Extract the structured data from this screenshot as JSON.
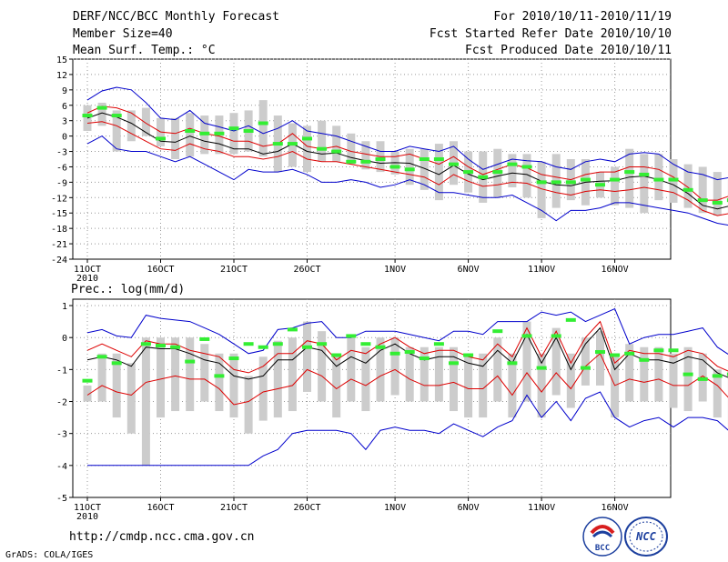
{
  "header": {
    "title": "DERF/NCC/BCC Monthly Forecast",
    "member_size": "Member Size=40",
    "variable": "Mean Surf. Temp.: °C",
    "period": "For 2010/10/11-2010/11/19",
    "fcst_started": "Fcst Started Refer Date 2010/10/10",
    "fcst_produced": "Fcst Produced Date 2010/10/11"
  },
  "footer": {
    "url": "http://cmdp.ncc.cma.gov.cn",
    "credit": "GrADS: COLA/IGES",
    "logo_left_text": "BCC",
    "logo_right_text": "NCC"
  },
  "colors": {
    "envelope": "#0000cc",
    "spread": "#dd0000",
    "mean": "#000000",
    "observed": "#33ee33",
    "boxes": "#cccccc",
    "grid": "#999999"
  },
  "chart_data": [
    {
      "type": "line",
      "title": "Mean Surf. Temp.: °C",
      "x_labels": [
        "11OCT",
        "16OCT",
        "21OCT",
        "26OCT",
        "1NOV",
        "6NOV",
        "11NOV",
        "16NOV"
      ],
      "x_label_days": [
        0,
        5,
        10,
        15,
        21,
        26,
        31,
        36
      ],
      "x_year": "2010",
      "ylim": [
        -24,
        15
      ],
      "yticks": [
        15,
        12,
        9,
        6,
        3,
        0,
        -3,
        -6,
        -9,
        -12,
        -15,
        -18,
        -21,
        -24
      ],
      "series": [
        {
          "name": "max",
          "values": [
            7,
            8.8,
            9.5,
            9,
            6.5,
            3.5,
            3.2,
            5,
            2.5,
            1.8,
            1,
            2,
            0.5,
            1.5,
            3,
            1,
            0.5,
            0,
            -1,
            -2,
            -3,
            -3,
            -2,
            -2.5,
            -3,
            -2,
            -4.5,
            -6.5,
            -5.5,
            -4.5,
            -4.8,
            -5,
            -6,
            -6.5,
            -5,
            -4.5,
            -5,
            -3.5,
            -3.2,
            -3.5,
            -5.5,
            -7,
            -7.5,
            -8.5,
            -8,
            -9
          ]
        },
        {
          "name": "upper",
          "values": [
            4.5,
            5.8,
            5.5,
            4.5,
            2.5,
            0.8,
            0.5,
            1.5,
            0.5,
            0,
            -1,
            -1,
            -2,
            -1.5,
            0.5,
            -2,
            -2.5,
            -2,
            -3,
            -3.5,
            -4,
            -4,
            -3.5,
            -4.5,
            -5.5,
            -4,
            -6,
            -7.5,
            -6.5,
            -5.5,
            -6.2,
            -7.5,
            -8,
            -8.5,
            -7.5,
            -7,
            -7,
            -6,
            -6,
            -6.5,
            -8,
            -10,
            -12.5,
            -12.5,
            -11.5,
            -12.5
          ]
        },
        {
          "name": "mean",
          "values": [
            3.5,
            4.5,
            3.7,
            2.5,
            0.7,
            -1,
            -1.2,
            0,
            -1,
            -1.5,
            -2.5,
            -2.5,
            -3.5,
            -3,
            -1.5,
            -3,
            -3.5,
            -3.3,
            -4.2,
            -4.8,
            -5.3,
            -5.2,
            -5.3,
            -6.3,
            -7.5,
            -5.7,
            -7.4,
            -8.5,
            -7.8,
            -7.2,
            -7.5,
            -8.8,
            -9.5,
            -9.7,
            -9,
            -8.8,
            -8.7,
            -8,
            -7.8,
            -8.5,
            -9.5,
            -11.2,
            -13.5,
            -14.2,
            -13.5,
            -14.7
          ]
        },
        {
          "name": "lower",
          "values": [
            2.5,
            2.8,
            2,
            0.5,
            -1,
            -2.5,
            -2.8,
            -1.5,
            -2.5,
            -3,
            -4,
            -4,
            -4.5,
            -4,
            -3,
            -4.5,
            -5,
            -5,
            -5.5,
            -6,
            -6.5,
            -7,
            -7.5,
            -8,
            -9.5,
            -7.5,
            -8.8,
            -9.8,
            -9.5,
            -9,
            -9.2,
            -10.3,
            -11,
            -11.5,
            -10.8,
            -10.5,
            -10.8,
            -10.5,
            -10,
            -10.5,
            -11,
            -12.5,
            -14.5,
            -15.5,
            -15,
            -16.5
          ]
        },
        {
          "name": "min",
          "values": [
            -1.5,
            0,
            -2.5,
            -3,
            -3,
            -4,
            -5,
            -4,
            -5.5,
            -7,
            -8.5,
            -6.5,
            -7,
            -7,
            -6.5,
            -7.5,
            -9,
            -9,
            -8.5,
            -9,
            -10,
            -9.5,
            -8.5,
            -9.5,
            -11,
            -11,
            -11.5,
            -12,
            -12,
            -11.5,
            -13,
            -14.5,
            -16.5,
            -14.5,
            -14.5,
            -14,
            -13,
            -13,
            -13.5,
            -14,
            -14.5,
            -15,
            -16,
            -17,
            -17.5,
            -20
          ]
        },
        {
          "name": "box_high",
          "values": [
            6,
            6.5,
            5,
            5,
            5.5,
            3.5,
            3.5,
            4.5,
            4,
            4,
            4.5,
            5,
            7,
            4,
            2.5,
            2,
            3,
            2,
            0.5,
            -1,
            -1,
            -3,
            -2.5,
            -2.5,
            -1.5,
            -1,
            -3,
            -3,
            -2.5,
            -3.5,
            -3.5,
            -5,
            -3.5,
            -4.5,
            -4.5,
            -7,
            -6,
            -2.5,
            -3.5,
            -3.5,
            -4.5,
            -5.5,
            -6,
            -7,
            -8.5,
            -10.5
          ]
        },
        {
          "name": "box_low",
          "values": [
            1,
            2,
            -3,
            -1,
            0,
            -2,
            -4.5,
            -4,
            -3.5,
            -3.5,
            -3.5,
            -3,
            -4,
            -7,
            -6,
            -7,
            -5,
            -5,
            -5.5,
            -6.5,
            -7,
            -7.5,
            -9.5,
            -10.5,
            -12.5,
            -9.5,
            -11,
            -13,
            -12,
            -10,
            -12,
            -16,
            -14,
            -12.5,
            -13.5,
            -12,
            -13.5,
            -14,
            -15,
            -12.5,
            -13,
            -14,
            -15,
            -15.5,
            -15,
            -17
          ]
        },
        {
          "name": "observed",
          "values": [
            4,
            5.5,
            4,
            null,
            null,
            -0.5,
            null,
            1,
            0.5,
            0.5,
            1.5,
            1,
            2.5,
            -1.5,
            -1.5,
            -0.5,
            -2.5,
            -3,
            -5,
            -5,
            -4.5,
            -6,
            -6.5,
            -4.5,
            -4.5,
            -5.5,
            -7,
            -8,
            -7,
            -5.5,
            -6,
            -9,
            -9,
            -9,
            -8.5,
            -9.5,
            -8.5,
            -7,
            -7.5,
            -8.5,
            -8.5,
            -10.5,
            -12.5,
            -13,
            -12.5,
            -14
          ]
        }
      ]
    },
    {
      "type": "line",
      "title": "Prec.: log(mm/d)",
      "x_labels": [
        "11OCT",
        "16OCT",
        "21OCT",
        "26OCT",
        "1NOV",
        "6NOV",
        "11NOV",
        "16NOV"
      ],
      "x_label_days": [
        0,
        5,
        10,
        15,
        21,
        26,
        31,
        36
      ],
      "x_year": "2010",
      "ylim": [
        -5,
        1.2
      ],
      "yticks": [
        1,
        0,
        -1,
        -2,
        -3,
        -4,
        -5
      ],
      "series": [
        {
          "name": "max",
          "values": [
            0.15,
            0.25,
            0.05,
            0,
            0.7,
            0.6,
            0.55,
            0.5,
            0.3,
            0.1,
            -0.2,
            -0.5,
            -0.4,
            0.25,
            0.3,
            0.45,
            0.5,
            0,
            0,
            0.2,
            0.2,
            0.2,
            0.1,
            0,
            -0.1,
            0.2,
            0.2,
            0.1,
            0.5,
            0.5,
            0.5,
            0.8,
            0.7,
            0.8,
            0.5,
            0.7,
            0.9,
            -0.2,
            0,
            0.1,
            0.1,
            0.2,
            0.3,
            -0.3,
            -0.6,
            -0.5,
            -0.3
          ]
        },
        {
          "name": "upper",
          "values": [
            -0.4,
            -0.2,
            -0.4,
            -0.6,
            -0.1,
            -0.2,
            -0.2,
            -0.4,
            -0.5,
            -0.6,
            -1,
            -1.1,
            -0.9,
            -0.5,
            -0.5,
            -0.1,
            -0.2,
            -0.7,
            -0.4,
            -0.5,
            -0.2,
            0,
            -0.3,
            -0.5,
            -0.4,
            -0.4,
            -0.6,
            -0.7,
            -0.2,
            -0.6,
            0.3,
            -0.6,
            0.2,
            -0.8,
            0,
            0.5,
            -0.8,
            -0.4,
            -0.5,
            -0.5,
            -0.6,
            -0.4,
            -0.5,
            -0.9,
            -1.1,
            -1.2,
            -1
          ]
        },
        {
          "name": "mean",
          "values": [
            -0.7,
            -0.6,
            -0.7,
            -0.9,
            -0.3,
            -0.35,
            -0.35,
            -0.5,
            -0.7,
            -0.8,
            -1.2,
            -1.3,
            -1.2,
            -0.7,
            -0.7,
            -0.3,
            -0.4,
            -0.9,
            -0.6,
            -0.8,
            -0.4,
            -0.2,
            -0.5,
            -0.7,
            -0.6,
            -0.6,
            -0.8,
            -0.9,
            -0.4,
            -0.8,
            0.1,
            -0.8,
            0,
            -1,
            -0.2,
            0.3,
            -1,
            -0.5,
            -0.7,
            -0.7,
            -0.8,
            -0.6,
            -0.7,
            -1.1,
            -1.3,
            -1.3,
            -1.1
          ]
        },
        {
          "name": "lower",
          "values": [
            -1.8,
            -1.5,
            -1.7,
            -1.8,
            -1.4,
            -1.3,
            -1.2,
            -1.3,
            -1.3,
            -1.6,
            -2.1,
            -2,
            -1.7,
            -1.6,
            -1.5,
            -1,
            -1.2,
            -1.6,
            -1.3,
            -1.5,
            -1.2,
            -1,
            -1.3,
            -1.5,
            -1.5,
            -1.4,
            -1.6,
            -1.6,
            -1.2,
            -1.8,
            -1.1,
            -1.7,
            -1.1,
            -1.6,
            -0.9,
            -0.5,
            -1.5,
            -1.3,
            -1.4,
            -1.3,
            -1.5,
            -1.5,
            -1.2,
            -1.5,
            -2,
            -1.8,
            -1.6
          ]
        },
        {
          "name": "min",
          "values": [
            -4,
            -4,
            -4,
            -4,
            -4,
            -4,
            -4,
            -4,
            -4,
            -4,
            -4,
            -4,
            -3.7,
            -3.5,
            -3,
            -2.9,
            -2.9,
            -2.9,
            -3,
            -3.5,
            -2.9,
            -2.8,
            -2.9,
            -2.9,
            -3,
            -2.7,
            -2.9,
            -3.1,
            -2.8,
            -2.6,
            -1.8,
            -2.5,
            -2,
            -2.6,
            -1.9,
            -1.7,
            -2.5,
            -2.8,
            -2.6,
            -2.5,
            -2.8,
            -2.5,
            -2.5,
            -2.6,
            -3,
            -3.1,
            -2.9
          ]
        },
        {
          "name": "box_high",
          "values": [
            -1.5,
            -0.5,
            -0.5,
            -0.8,
            0,
            0,
            0,
            0,
            -0.2,
            -0.5,
            -0.5,
            -1.2,
            -0.6,
            -0.1,
            0,
            0.5,
            0.2,
            -0.5,
            0,
            -0.3,
            0,
            0,
            -0.3,
            -0.3,
            -0.3,
            -0.3,
            -0.5,
            -0.5,
            0,
            -0.5,
            0.5,
            -0.5,
            0.3,
            -0.5,
            0,
            0.2,
            -0.5,
            -0.2,
            -0.3,
            -0.3,
            -0.5,
            -0.3,
            -0.5,
            -1,
            -1,
            -1.2,
            -1
          ]
        },
        {
          "name": "box_low",
          "values": [
            -2,
            -2,
            -2.5,
            -3,
            -4,
            -2.5,
            -2.3,
            -2.3,
            -2,
            -2.3,
            -2.5,
            -3,
            -2.6,
            -2.5,
            -2.3,
            -1.7,
            -2,
            -2.5,
            -2,
            -2.3,
            -2,
            -1.8,
            -2,
            -2,
            -2,
            -2.3,
            -2.5,
            -2.5,
            -2,
            -2.5,
            -2,
            -2.5,
            -1.8,
            -2.2,
            -1.5,
            -1.5,
            -2.5,
            -2,
            -2,
            -2,
            -2.2,
            -2.3,
            -2,
            -2.5,
            -2.8,
            -2.5,
            -2.4
          ]
        },
        {
          "name": "observed",
          "values": [
            -1.35,
            -0.6,
            -0.8,
            null,
            -0.2,
            -0.25,
            -0.3,
            -0.75,
            -0.05,
            -1.2,
            -0.65,
            -0.2,
            -0.3,
            -0.2,
            0.25,
            -0.3,
            -0.2,
            -0.55,
            0.05,
            -0.2,
            -0.3,
            -0.5,
            -0.45,
            -0.65,
            -0.2,
            -0.8,
            -0.55,
            null,
            0.2,
            -0.8,
            0.05,
            -0.95,
            0.05,
            0.55,
            -0.95,
            -0.45,
            -0.55,
            -0.5,
            -0.7,
            -0.4,
            -0.4,
            -1.15,
            -1.3,
            -1.2,
            -1.15,
            -1.15,
            null
          ]
        }
      ]
    }
  ]
}
